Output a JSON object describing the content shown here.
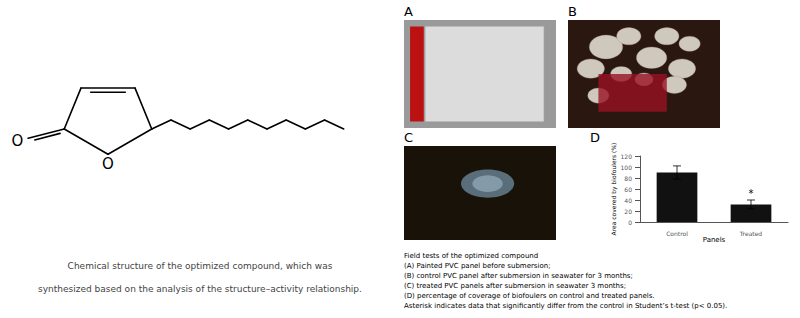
{
  "chart_data": {
    "type": "bar",
    "categories": [
      "Control",
      "Treated"
    ],
    "values": [
      90,
      32
    ],
    "errors": [
      12,
      8
    ],
    "color": "#111111",
    "xlabel": "Panels",
    "ylabel": "Area covered by biofoulers (%)",
    "ylim": [
      0,
      120
    ],
    "yticks": [
      0,
      20,
      40,
      60,
      80,
      100,
      120
    ],
    "grid": false,
    "annotations": [
      {
        "text": "*",
        "x": "Treated"
      }
    ],
    "panel_labels": [
      "A",
      "B",
      "C",
      "D"
    ],
    "atom_labels": [
      "O",
      "O"
    ],
    "structure_caption": [
      "Chemical structure of the optimized compound, which was",
      "synthesized based on the analysis of the structure–activity relationship."
    ],
    "caption": [
      "Field tests of the optimized compound",
      "(A) Painted PVC panel before submersion;",
      "(B) control PVC panel after submersion in seawater for 3 months;",
      "(C) treated PVC panels after submersion in seawater 3 months;",
      "(D) percentage of coverage of biofoulers on control and treated panels.",
      "Asterisk indicates data that significantly differ from the control in Student’s t-test (p< 0.05)."
    ]
  }
}
